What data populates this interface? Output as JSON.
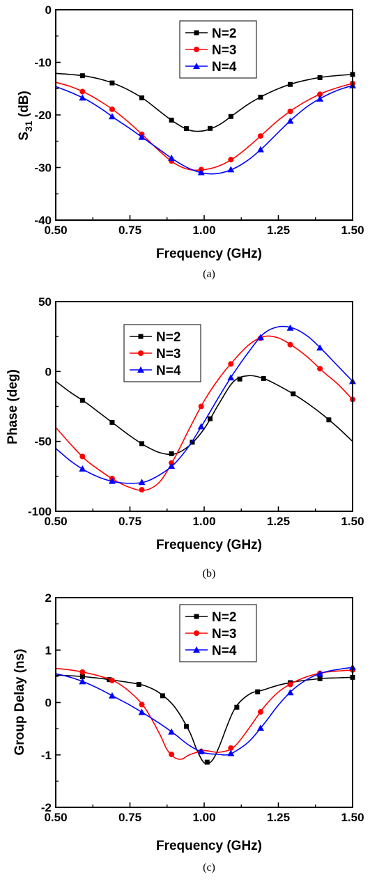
{
  "chart_data": [
    {
      "type": "line",
      "caption": "(a)",
      "xlabel": "Frequency (GHz)",
      "ylabel_main": "S",
      "ylabel_sub": "31",
      "ylabel_rest": " (dB)",
      "xlim": [
        0.5,
        1.5
      ],
      "ylim": [
        -40,
        0
      ],
      "xticks": [
        "0.50",
        "0.75",
        "1.00",
        "1.25",
        "1.50"
      ],
      "yticks": [
        "-40",
        "-30",
        "-20",
        "-10",
        "0"
      ],
      "legend_position": "top-center",
      "grid": false,
      "series": [
        {
          "name": "N=2",
          "color": "#000000",
          "marker": "square",
          "x": [
            0.5,
            0.55,
            0.6,
            0.65,
            0.7,
            0.75,
            0.8,
            0.85,
            0.9,
            0.95,
            1.0,
            1.05,
            1.1,
            1.15,
            1.2,
            1.25,
            1.3,
            1.35,
            1.4,
            1.45,
            1.5
          ],
          "y": [
            -12.1,
            -12.3,
            -12.6,
            -13.2,
            -14.1,
            -15.4,
            -17.1,
            -19.3,
            -21.4,
            -22.9,
            -23.0,
            -21.9,
            -19.9,
            -17.9,
            -16.3,
            -15.0,
            -14.0,
            -13.3,
            -12.8,
            -12.5,
            -12.3
          ],
          "marker_x": [
            0.59,
            0.69,
            0.79,
            0.89,
            0.94,
            1.02,
            1.09,
            1.19,
            1.29,
            1.39,
            1.5
          ]
        },
        {
          "name": "N=3",
          "color": "#ff0000",
          "marker": "circle",
          "x": [
            0.5,
            0.55,
            0.6,
            0.65,
            0.7,
            0.75,
            0.8,
            0.85,
            0.9,
            0.95,
            1.0,
            1.05,
            1.1,
            1.15,
            1.2,
            1.25,
            1.3,
            1.35,
            1.4,
            1.45,
            1.5
          ],
          "y": [
            -13.8,
            -14.6,
            -15.8,
            -17.4,
            -19.3,
            -21.6,
            -24.2,
            -26.9,
            -29.2,
            -30.4,
            -30.4,
            -29.7,
            -28.2,
            -26.0,
            -23.5,
            -21.0,
            -18.9,
            -17.2,
            -15.8,
            -14.8,
            -14.0
          ],
          "marker_x": [
            0.59,
            0.69,
            0.79,
            0.89,
            0.99,
            1.09,
            1.19,
            1.29,
            1.39,
            1.5
          ]
        },
        {
          "name": "N=4",
          "color": "#0000ff",
          "marker": "triangle",
          "x": [
            0.5,
            0.55,
            0.6,
            0.65,
            0.7,
            0.75,
            0.8,
            0.85,
            0.9,
            0.95,
            1.0,
            1.05,
            1.1,
            1.15,
            1.2,
            1.25,
            1.3,
            1.35,
            1.4,
            1.45,
            1.5
          ],
          "y": [
            -14.6,
            -15.7,
            -17.0,
            -18.7,
            -20.7,
            -22.6,
            -24.6,
            -26.6,
            -28.6,
            -30.2,
            -31.1,
            -31.1,
            -30.2,
            -28.5,
            -26.1,
            -23.3,
            -20.6,
            -18.3,
            -16.6,
            -15.3,
            -14.4
          ],
          "marker_x": [
            0.59,
            0.69,
            0.79,
            0.89,
            0.99,
            1.09,
            1.19,
            1.29,
            1.39,
            1.5
          ]
        }
      ]
    },
    {
      "type": "line",
      "caption": "(b)",
      "xlabel": "Frequency (GHz)",
      "ylabel_main": "Phase (deg)",
      "ylabel_sub": "",
      "ylabel_rest": "",
      "xlim": [
        0.5,
        1.5
      ],
      "ylim": [
        -100,
        50
      ],
      "xticks": [
        "0.50",
        "0.75",
        "1.00",
        "1.25",
        "1.50"
      ],
      "yticks": [
        "-100",
        "-50",
        "0",
        "50"
      ],
      "legend_position": "top-left",
      "grid": false,
      "series": [
        {
          "name": "N=2",
          "color": "#000000",
          "marker": "square",
          "x": [
            0.5,
            0.55,
            0.6,
            0.65,
            0.7,
            0.75,
            0.8,
            0.85,
            0.9,
            0.95,
            1.0,
            1.05,
            1.1,
            1.15,
            1.2,
            1.25,
            1.3,
            1.35,
            1.4,
            1.45,
            1.5
          ],
          "y": [
            -7,
            -15,
            -22,
            -30,
            -38,
            -46,
            -53,
            -58,
            -59,
            -53,
            -41,
            -23,
            -7,
            -3,
            -5,
            -10,
            -16,
            -23,
            -31,
            -40,
            -50
          ],
          "marker_x": [
            0.59,
            0.69,
            0.79,
            0.89,
            0.96,
            1.02,
            1.12,
            1.2,
            1.3,
            1.42
          ]
        },
        {
          "name": "N=3",
          "color": "#ff0000",
          "marker": "circle",
          "x": [
            0.5,
            0.55,
            0.6,
            0.65,
            0.7,
            0.75,
            0.8,
            0.85,
            0.9,
            0.95,
            1.0,
            1.05,
            1.1,
            1.15,
            1.2,
            1.25,
            1.3,
            1.35,
            1.4,
            1.45,
            1.5
          ],
          "y": [
            -40,
            -52,
            -63,
            -71,
            -78,
            -83,
            -85,
            -79,
            -62,
            -41,
            -21,
            -5,
            8,
            19,
            25,
            24,
            18,
            10,
            0,
            -9,
            -20
          ],
          "marker_x": [
            0.59,
            0.69,
            0.79,
            0.89,
            0.99,
            1.09,
            1.19,
            1.29,
            1.39,
            1.5
          ]
        },
        {
          "name": "N=4",
          "color": "#0000ff",
          "marker": "triangle",
          "x": [
            0.5,
            0.55,
            0.6,
            0.65,
            0.7,
            0.75,
            0.8,
            0.85,
            0.9,
            0.95,
            1.0,
            1.05,
            1.1,
            1.15,
            1.2,
            1.25,
            1.3,
            1.35,
            1.4,
            1.45,
            1.5
          ],
          "y": [
            -55,
            -64,
            -71,
            -76,
            -79,
            -80,
            -79,
            -74,
            -66,
            -53,
            -36,
            -18,
            -1,
            14,
            27,
            32,
            31,
            25,
            15,
            4,
            -7
          ],
          "marker_x": [
            0.59,
            0.69,
            0.79,
            0.89,
            0.99,
            1.09,
            1.19,
            1.29,
            1.39,
            1.5
          ]
        }
      ]
    },
    {
      "type": "line",
      "caption": "(c)",
      "xlabel": "Frequency (GHz)",
      "ylabel_main": "Group Delay (ns)",
      "ylabel_sub": "",
      "ylabel_rest": "",
      "xlim": [
        0.5,
        1.5
      ],
      "ylim": [
        -2,
        2
      ],
      "xticks": [
        "0.50",
        "0.75",
        "1.00",
        "1.25",
        "1.50"
      ],
      "yticks": [
        "-2",
        "-1",
        "0",
        "1",
        "2"
      ],
      "legend_position": "top-right",
      "grid": false,
      "series": [
        {
          "name": "N=2",
          "color": "#000000",
          "marker": "square",
          "x": [
            0.5,
            0.55,
            0.6,
            0.65,
            0.7,
            0.75,
            0.8,
            0.85,
            0.9,
            0.95,
            0.975,
            1.0,
            1.025,
            1.05,
            1.1,
            1.15,
            1.2,
            1.25,
            1.3,
            1.35,
            1.4,
            1.45,
            1.5
          ],
          "y": [
            0.52,
            0.51,
            0.49,
            0.46,
            0.42,
            0.38,
            0.32,
            0.18,
            -0.08,
            -0.55,
            -0.9,
            -1.15,
            -1.12,
            -0.85,
            -0.15,
            0.15,
            0.24,
            0.33,
            0.39,
            0.43,
            0.46,
            0.47,
            0.48
          ],
          "marker_x": [
            0.59,
            0.68,
            0.78,
            0.86,
            0.94,
            1.01,
            1.11,
            1.18,
            1.29,
            1.39,
            1.5
          ]
        },
        {
          "name": "N=3",
          "color": "#ff0000",
          "marker": "circle",
          "x": [
            0.5,
            0.55,
            0.6,
            0.65,
            0.7,
            0.75,
            0.8,
            0.85,
            0.875,
            0.9,
            0.925,
            0.95,
            1.0,
            1.05,
            1.1,
            1.15,
            1.2,
            1.25,
            1.3,
            1.35,
            1.4,
            1.45,
            1.5
          ],
          "y": [
            0.65,
            0.62,
            0.57,
            0.5,
            0.4,
            0.2,
            -0.1,
            -0.6,
            -0.9,
            -1.05,
            -1.08,
            -1.0,
            -0.92,
            -0.95,
            -0.85,
            -0.5,
            -0.1,
            0.2,
            0.38,
            0.5,
            0.57,
            0.6,
            0.62
          ],
          "marker_x": [
            0.59,
            0.69,
            0.79,
            0.89,
            0.99,
            1.09,
            1.19,
            1.29,
            1.39,
            1.5
          ]
        },
        {
          "name": "N=4",
          "color": "#0000ff",
          "marker": "triangle",
          "x": [
            0.5,
            0.55,
            0.6,
            0.65,
            0.7,
            0.75,
            0.8,
            0.85,
            0.9,
            0.95,
            1.0,
            1.05,
            1.075,
            1.1,
            1.15,
            1.2,
            1.25,
            1.3,
            1.35,
            1.4,
            1.45,
            1.5
          ],
          "y": [
            0.55,
            0.48,
            0.38,
            0.25,
            0.1,
            -0.05,
            -0.22,
            -0.4,
            -0.6,
            -0.82,
            -0.96,
            -0.99,
            -1.0,
            -0.95,
            -0.75,
            -0.42,
            -0.05,
            0.25,
            0.45,
            0.57,
            0.63,
            0.67
          ],
          "marker_x": [
            0.59,
            0.69,
            0.79,
            0.89,
            0.99,
            1.09,
            1.19,
            1.29,
            1.39,
            1.5
          ]
        }
      ]
    }
  ]
}
